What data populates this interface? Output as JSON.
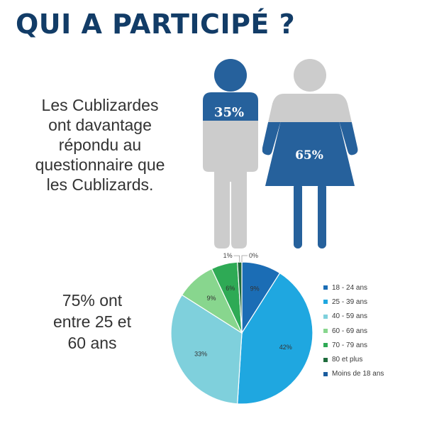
{
  "title": "QUI A PARTICIPÉ ?",
  "gender": {
    "text": "Les  Cublizardes\nont davantage\nrépondu au\nquestionnaire que\nles Cublizards.",
    "male_label": "35%",
    "female_label": "65%",
    "male_share": 35,
    "female_share": 65,
    "colors": {
      "fill": "#26619c",
      "empty": "#cccccc"
    }
  },
  "age": {
    "text": "75% ont\nentre 25 et\n60 ans"
  },
  "chart_data": {
    "type": "pie",
    "categories": [
      "18 - 24 ans",
      "25 - 39 ans",
      "40 - 59 ans",
      "60 - 69 ans",
      "70 - 79 ans",
      "80 et plus",
      "Moins de 18 ans"
    ],
    "values": [
      9,
      42,
      33,
      9,
      6,
      1,
      0
    ],
    "labels": [
      "9%",
      "42%",
      "33%",
      "9%",
      "6%",
      "1%",
      "0%"
    ],
    "colors": [
      "#1b6db5",
      "#1fa7e0",
      "#7fd0dc",
      "#88d68e",
      "#2eaa55",
      "#1e6b3c",
      "#1a5c9e"
    ],
    "legend_position": "right"
  }
}
